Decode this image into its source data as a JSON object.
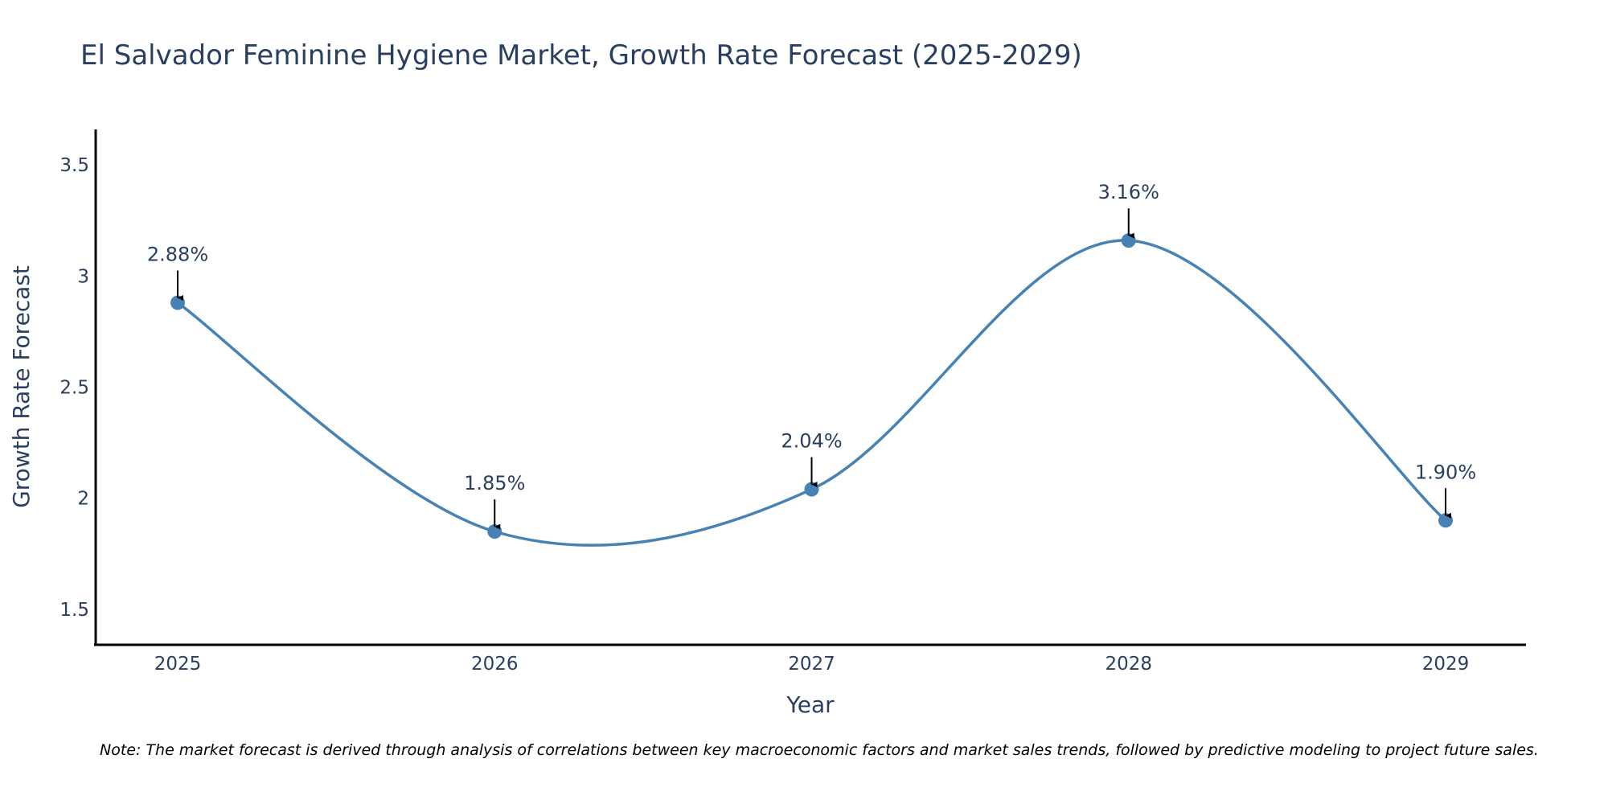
{
  "chart_data": {
    "type": "line",
    "title": "El Salvador Feminine Hygiene Market, Growth Rate Forecast (2025-2029)",
    "xlabel": "Year",
    "ylabel": "Growth Rate Forecast",
    "categories": [
      "2025",
      "2026",
      "2027",
      "2028",
      "2029"
    ],
    "values": [
      2.88,
      1.85,
      2.04,
      3.16,
      1.9
    ],
    "data_labels": [
      "2.88%",
      "1.85%",
      "2.04%",
      "3.16%",
      "1.90%"
    ],
    "y_ticks": [
      1.5,
      2,
      2.5,
      3,
      3.5
    ],
    "y_tick_labels": [
      "1.5",
      "2",
      "2.5",
      "3",
      "3.5"
    ],
    "ylim": [
      1.34,
      3.66
    ],
    "grid": false,
    "line_shape": "spline",
    "colors": {
      "line": "#4682b4",
      "marker": "#4682b4",
      "axis": "#000000",
      "text": "#2a3f5f",
      "arrow": "#000000"
    },
    "note": "Note: The market forecast is derived through analysis of correlations between key macroeconomic factors and market sales trends, followed by predictive modeling to project future sales."
  }
}
